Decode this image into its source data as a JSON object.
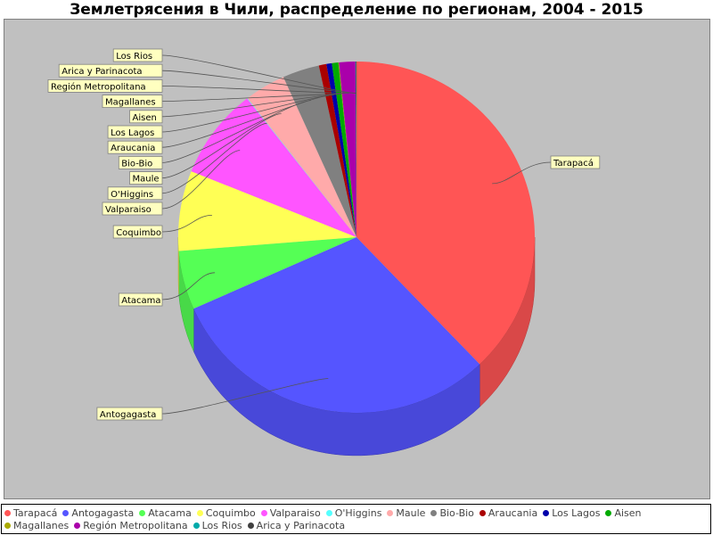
{
  "chart_data": {
    "type": "pie",
    "title": "Землетрясения в Чили, распределение по регионам, 2004 - 2015",
    "slices": [
      {
        "name": "Tarapacá",
        "value": 38.5,
        "color": "#ff5555"
      },
      {
        "name": "Antogagasta",
        "value": 31.0,
        "color": "#5555ff"
      },
      {
        "name": "Atacama",
        "value": 5.5,
        "color": "#55ff55"
      },
      {
        "name": "Coquimbo",
        "value": 7.5,
        "color": "#ffff55"
      },
      {
        "name": "Valparaiso",
        "value": 8.5,
        "color": "#ff55ff"
      },
      {
        "name": "O'Higgins",
        "value": 0.05,
        "color": "#55ffff"
      },
      {
        "name": "Maule",
        "value": 3.8,
        "color": "#ffaaaa"
      },
      {
        "name": "Bio-Bio",
        "value": 3.4,
        "color": "#808080"
      },
      {
        "name": "Araucania",
        "value": 0.7,
        "color": "#aa0000"
      },
      {
        "name": "Los Lagos",
        "value": 0.5,
        "color": "#0000aa"
      },
      {
        "name": "Aisen",
        "value": 0.6,
        "color": "#00aa00"
      },
      {
        "name": "Magallanes",
        "value": 0.05,
        "color": "#aaaa00"
      },
      {
        "name": "Región Metropolitana",
        "value": 1.5,
        "color": "#aa00aa"
      },
      {
        "name": "Los Rios",
        "value": 0.05,
        "color": "#00aaaa"
      },
      {
        "name": "Arica y Parinacota",
        "value": 0.05,
        "color": "#404040"
      }
    ],
    "legend_position": "bottom"
  }
}
